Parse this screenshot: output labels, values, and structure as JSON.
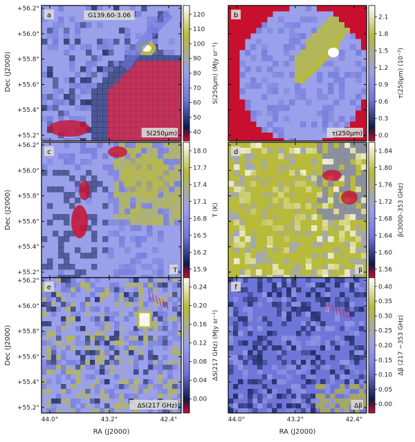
{
  "figure": {
    "object_label": "G139.60-3.06",
    "shared_ylabel": "Dec (J2000)",
    "shared_xlabel": "RA (J2000)",
    "dec_ticks": [
      "+56.2°",
      "+56.0°",
      "+55.8°",
      "+55.6°",
      "+55.4°",
      "+55.2°"
    ],
    "ra_ticks": [
      "44.0°",
      "43.2°",
      "42.4°"
    ]
  },
  "chart_data": [
    {
      "type": "heatmap",
      "panel_letter": "a",
      "map_label": "S(250μm)",
      "colorbar_label": "S(250μm) (MJy sr⁻¹)",
      "colorbar_ticks": [
        "120",
        "110",
        "100",
        "90",
        "80",
        "70",
        "60",
        "50",
        "40"
      ],
      "colorbar_range": [
        34,
        126
      ],
      "colormap": [
        "#c8102e",
        "#0d1b4a",
        "#7076d8",
        "#9aa0ea",
        "#b9bb3a",
        "#ffffff"
      ],
      "features": "bright compact source near RA 42.5°, Dec +55.87° (~120); dense ridge along north-east edge; faint extended emission elsewhere"
    },
    {
      "type": "heatmap",
      "panel_letter": "b",
      "map_label": "τ(250μm)",
      "colorbar_label": "τ(250μm) (10⁻³)",
      "colorbar_ticks": [
        "2.1",
        "1.8",
        "1.5",
        "1.2",
        "0.9",
        "0.6",
        "0.3",
        "0.0"
      ],
      "colorbar_range": [
        -0.1,
        2.3
      ],
      "colormap": [
        "#c8102e",
        "#0d1b4a",
        "#7076d8",
        "#9aa0ea",
        "#b9bb3a",
        "#ffffff"
      ],
      "features": "masked red region outside the mapped area; peak ~2.1 near RA 42.5°, Dec +55.9°"
    },
    {
      "type": "heatmap",
      "panel_letter": "c",
      "map_label": "T",
      "colorbar_label": "T (K)",
      "colorbar_ticks": [
        "18.0",
        "17.7",
        "17.4",
        "17.1",
        "16.8",
        "16.5",
        "16.2",
        "15.9"
      ],
      "colorbar_range": [
        15.75,
        18.15
      ],
      "colormap": [
        "#c8102e",
        "#0d1b4a",
        "#7076d8",
        "#9aa0ea",
        "#b9bb3a",
        "#ffffff"
      ],
      "features": "warm region in north-east (~17.8 K); cold clumps (~15.9 K) in south-west"
    },
    {
      "type": "heatmap",
      "panel_letter": "d",
      "map_label": "β",
      "colorbar_label": "β(3000–353 GHz)",
      "colorbar_ticks": [
        "1.84",
        "1.80",
        "1.76",
        "1.72",
        "1.68",
        "1.64",
        "1.60",
        "1.56"
      ],
      "colorbar_range": [
        1.54,
        1.86
      ],
      "colormap": [
        "#c8102e",
        "#0d1b4a",
        "#7076d8",
        "#9aa0ea",
        "#b9bb3a",
        "#ffffff"
      ],
      "features": "high β (~1.8) over west and south; low β (~1.56) patches in north-east"
    },
    {
      "type": "heatmap",
      "panel_letter": "e",
      "map_label": "ΔS(217 GHz)",
      "colorbar_label": "ΔS(217 GHz) (MJy sr⁻¹)",
      "colorbar_ticks": [
        "0.24",
        "0.20",
        "0.16",
        "0.12",
        "0.08",
        "0.04",
        "0.00"
      ],
      "colorbar_range": [
        -0.03,
        0.26
      ],
      "colormap": [
        "#c8102e",
        "#0d1b4a",
        "#7076d8",
        "#9aa0ea",
        "#b9bb3a",
        "#ffffff"
      ],
      "features": "blocky pixelated residual map; strongest residual (~0.24) near bright source at RA 42.6°, Dec +55.85°"
    },
    {
      "type": "heatmap",
      "panel_letter": "f",
      "map_label": "Δβ",
      "colorbar_label": "Δβ (217 −353 GHz)",
      "colorbar_ticks": [
        "0.40",
        "0.35",
        "0.30",
        "0.25",
        "0.20",
        "0.15",
        "0.10",
        "0.05",
        "0.00"
      ],
      "colorbar_range": [
        -0.03,
        0.43
      ],
      "colormap": [
        "#c8102e",
        "#0d1b4a",
        "#7076d8",
        "#9aa0ea",
        "#b9bb3a",
        "#ffffff"
      ],
      "features": "blocky pixelated map mostly ~0.1; high values (~0.35) in south-east corner"
    }
  ]
}
